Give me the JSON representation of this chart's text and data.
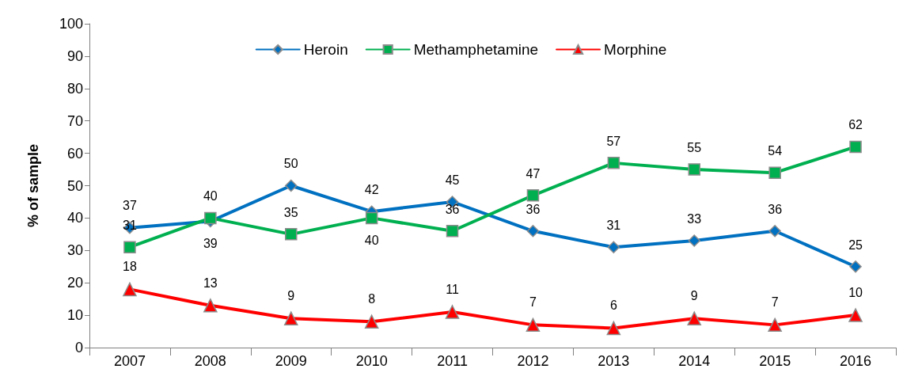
{
  "chart_data": {
    "type": "line",
    "ylabel": "% of sample",
    "categories": [
      "2007",
      "2008",
      "2009",
      "2010",
      "2011",
      "2012",
      "2013",
      "2014",
      "2015",
      "2016"
    ],
    "series": [
      {
        "name": "Heroin",
        "color": "#0070c0",
        "marker": "diamond",
        "values": [
          37,
          39,
          50,
          42,
          45,
          36,
          31,
          33,
          36,
          25
        ]
      },
      {
        "name": "Methamphetamine",
        "color": "#00b050",
        "marker": "square",
        "values": [
          31,
          40,
          35,
          40,
          36,
          47,
          57,
          55,
          54,
          62
        ]
      },
      {
        "name": "Morphine",
        "color": "#ff0000",
        "marker": "triangle",
        "values": [
          18,
          13,
          9,
          8,
          11,
          7,
          6,
          9,
          7,
          10
        ]
      }
    ],
    "ylim": [
      0,
      100
    ],
    "yticks": [
      0,
      10,
      20,
      30,
      40,
      50,
      60,
      70,
      80,
      90,
      100
    ],
    "grid": false,
    "legend": "top",
    "data_labels": true,
    "line_style": "solid"
  }
}
